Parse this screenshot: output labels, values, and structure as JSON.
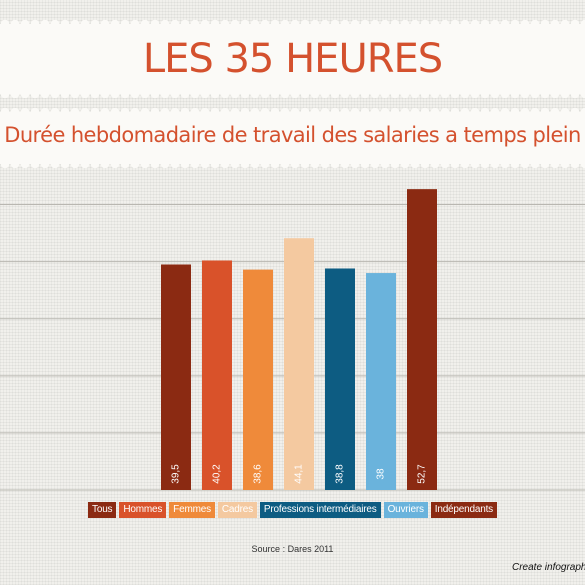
{
  "title": "LES 35 HEURES",
  "source": "Source : Dares 2011",
  "credit": "Create infographi",
  "colors": {
    "title": "#d4512e",
    "grid": "#b9b7b1"
  },
  "chart_data": {
    "type": "bar",
    "title": "Durée hebdomadaire de travail des salaries a temps plein",
    "categories": [
      "Tous",
      "Hommes",
      "Femmes",
      "Cadres",
      "Professions intermédiaires",
      "Ouvriers",
      "Indépendants"
    ],
    "values": [
      39.5,
      40.2,
      38.6,
      44.1,
      38.8,
      38,
      52.7
    ],
    "value_labels": [
      "39,5",
      "40,2",
      "38,6",
      "44,1",
      "38,8",
      "38",
      "52,7"
    ],
    "colors": [
      "#8b2a12",
      "#d9522a",
      "#ef8a3a",
      "#f4c9a0",
      "#0d5c82",
      "#6ab3dc",
      "#8b2a12"
    ],
    "ylim": [
      0,
      55
    ],
    "grid": true,
    "legend": "bottom"
  }
}
